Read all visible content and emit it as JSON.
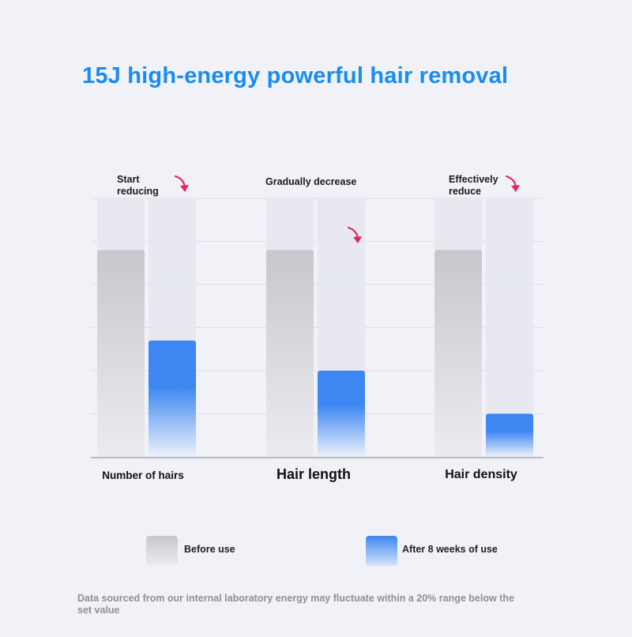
{
  "chart_data": {
    "type": "bar",
    "title": "15J high-energy powerful hair removal",
    "categories": [
      "Number of hairs",
      "Hair length",
      "Hair density"
    ],
    "series": [
      {
        "name": "Before use",
        "values": [
          4.8,
          4.8,
          4.8
        ]
      },
      {
        "name": "After 8 weeks of use",
        "values": [
          2.7,
          2.0,
          1.0
        ]
      }
    ],
    "ylim": [
      0,
      6
    ],
    "grid": true,
    "legend_position": "bottom",
    "annotations": [
      "Start\nreducing",
      "Gradually decrease",
      "Effectively\nreduce"
    ],
    "footnote": "Data sourced from our internal laboratory energy may fluctuate within a 20% range below the set value"
  },
  "colors": {
    "title": "#1a8cf0",
    "before_top": "#c8c8cc",
    "before_bottom": "#ececf0",
    "after_top": "#3d87f2",
    "after_bottom": "#eef1fb",
    "track": "#e6e7ef",
    "arrow": "#e0265a"
  }
}
